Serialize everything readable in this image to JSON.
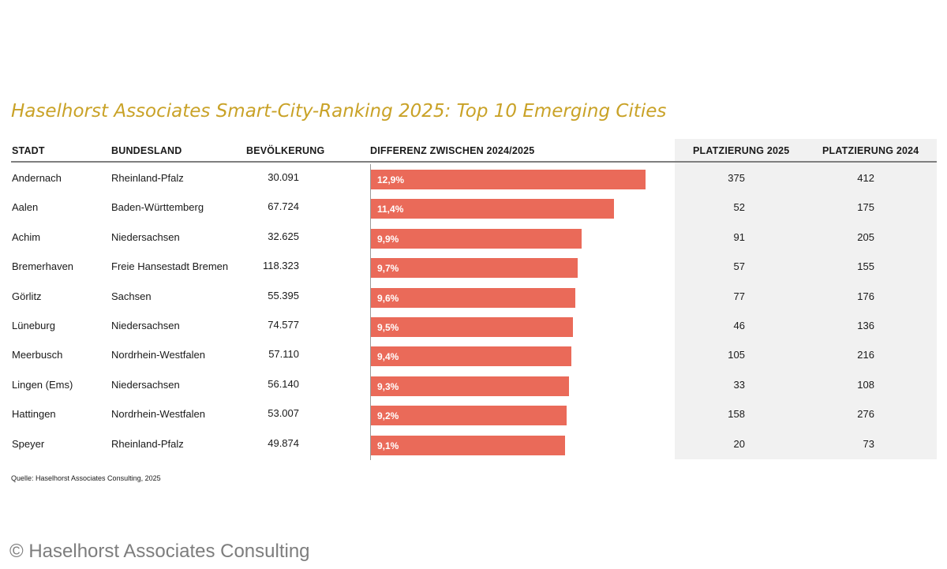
{
  "title": "Haselhorst Associates Smart-City-Ranking 2025: Top 10 Emerging Cities",
  "headers": {
    "stadt": "STADT",
    "bundesland": "BUNDESLAND",
    "bevoelkerung": "BEVÖLKERUNG",
    "differenz": "DIFFERENZ ZWISCHEN 2024/2025",
    "platz2025": "PLATZIERUNG 2025",
    "platz2024": "PLATZIERUNG 2024"
  },
  "rows": [
    {
      "stadt": "Andernach",
      "bundesland": "Rheinland-Pfalz",
      "bevoelkerung": "30.091",
      "diff_label": "12,9%",
      "platz2025": "375",
      "platz2024": "412"
    },
    {
      "stadt": "Aalen",
      "bundesland": "Baden-Württemberg",
      "bevoelkerung": "67.724",
      "diff_label": "11,4%",
      "platz2025": "52",
      "platz2024": "175"
    },
    {
      "stadt": "Achim",
      "bundesland": "Niedersachsen",
      "bevoelkerung": "32.625",
      "diff_label": "9,9%",
      "platz2025": "91",
      "platz2024": "205"
    },
    {
      "stadt": "Bremerhaven",
      "bundesland": "Freie Hansestadt Bremen",
      "bevoelkerung": "118.323",
      "diff_label": "9,7%",
      "platz2025": "57",
      "platz2024": "155"
    },
    {
      "stadt": "Görlitz",
      "bundesland": "Sachsen",
      "bevoelkerung": "55.395",
      "diff_label": "9,6%",
      "platz2025": "77",
      "platz2024": "176"
    },
    {
      "stadt": "Lüneburg",
      "bundesland": "Niedersachsen",
      "bevoelkerung": "74.577",
      "diff_label": "9,5%",
      "platz2025": "46",
      "platz2024": "136"
    },
    {
      "stadt": "Meerbusch",
      "bundesland": "Nordrhein-Westfalen",
      "bevoelkerung": "57.110",
      "diff_label": "9,4%",
      "platz2025": "105",
      "platz2024": "216"
    },
    {
      "stadt": "Lingen (Ems)",
      "bundesland": "Niedersachsen",
      "bevoelkerung": "56.140",
      "diff_label": "9,3%",
      "platz2025": "33",
      "platz2024": "108"
    },
    {
      "stadt": "Hattingen",
      "bundesland": "Nordrhein-Westfalen",
      "bevoelkerung": "53.007",
      "diff_label": "9,2%",
      "platz2025": "158",
      "platz2024": "276"
    },
    {
      "stadt": "Speyer",
      "bundesland": "Rheinland-Pfalz",
      "bevoelkerung": "49.874",
      "diff_label": "9,1%",
      "platz2025": "20",
      "platz2024": "73"
    }
  ],
  "chart_data": {
    "type": "bar",
    "orientation": "horizontal",
    "categories": [
      "Andernach",
      "Aalen",
      "Achim",
      "Bremerhaven",
      "Görlitz",
      "Lüneburg",
      "Meerbusch",
      "Lingen (Ems)",
      "Hattingen",
      "Speyer"
    ],
    "values": [
      12.9,
      11.4,
      9.9,
      9.7,
      9.6,
      9.5,
      9.4,
      9.3,
      9.2,
      9.1
    ],
    "value_unit": "%",
    "xlim": [
      0,
      12.9
    ],
    "title": "DIFFERENZ ZWISCHEN 2024/2025",
    "bar_color": "#ea6a59",
    "grid": false
  },
  "colors": {
    "title": "#c9a227",
    "bar": "#ea6a59",
    "rank_background": "#f1f1f1"
  },
  "source": "Quelle: Haselhorst Associates Consulting, 2025",
  "watermark": "© Haselhorst Associates Consulting"
}
